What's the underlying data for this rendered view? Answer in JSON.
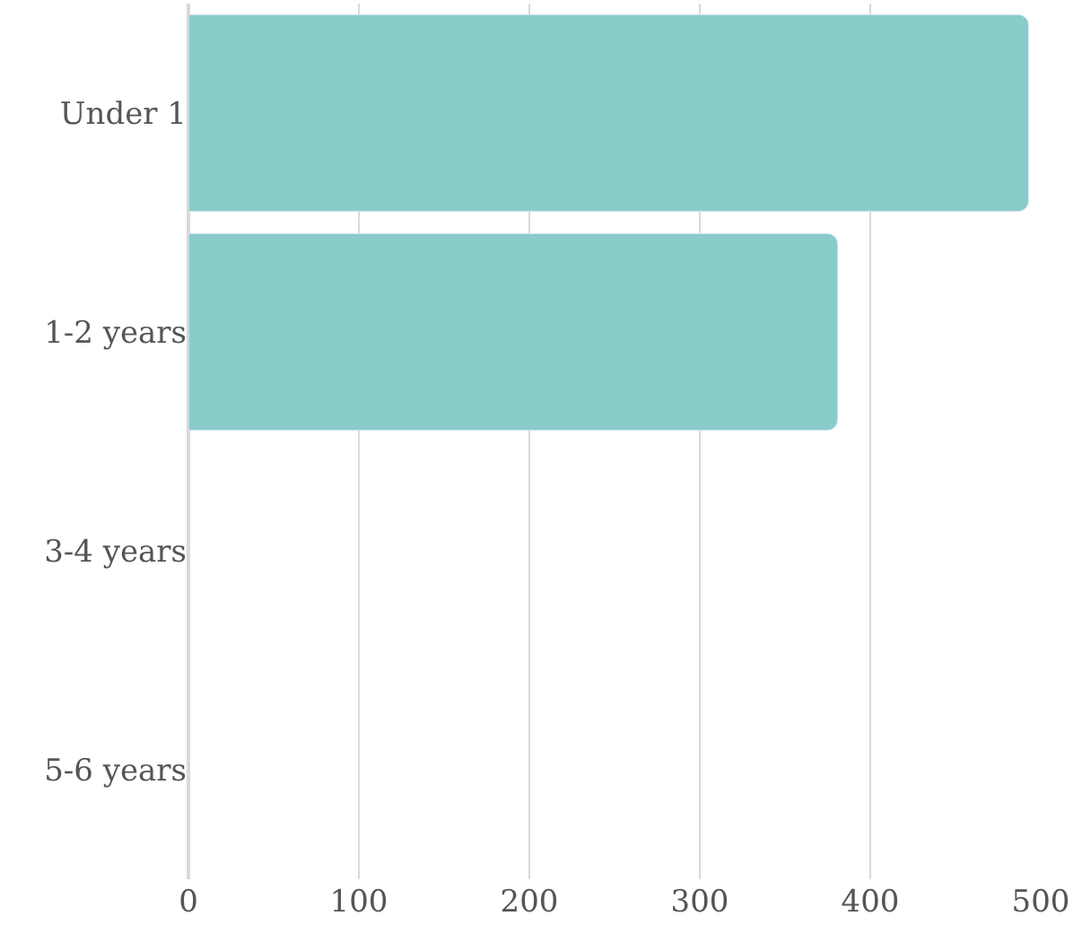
{
  "chart_data": {
    "type": "bar",
    "orientation": "horizontal",
    "categories": [
      "Under 1",
      "1-2 years",
      "3-4 years",
      "5-6 years"
    ],
    "values": [
      493,
      381,
      null,
      null
    ],
    "color": "#8accca",
    "xlim": [
      0,
      500
    ],
    "xticks": [
      0,
      100,
      200,
      300,
      400,
      500
    ],
    "grid": "x"
  }
}
